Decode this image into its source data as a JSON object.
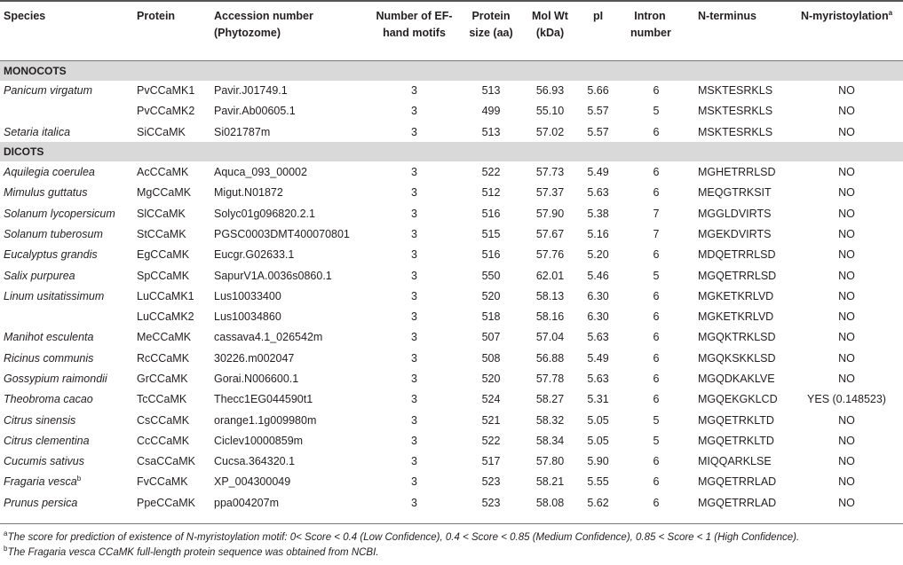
{
  "headers": {
    "species": "Species",
    "protein": "Protein",
    "accession": "Accession number (Phytozome)",
    "ef_hand": "Number of EF-hand motifs",
    "size": "Protein size (aa)",
    "molwt": "Mol Wt (kDa)",
    "pi": "pI",
    "intron": "Intron number",
    "nterm": "N-terminus",
    "nmyr": "N-myristoylation",
    "nmyr_sup": "a"
  },
  "sections": [
    {
      "label": "MONOCOTS",
      "rows": [
        {
          "species": "Panicum virgatum",
          "protein": "PvCCaMK1",
          "accession": "Pavir.J01749.1",
          "ef": "3",
          "size": "513",
          "mw": "56.93",
          "pi": "5.66",
          "intron": "6",
          "nterm": "MSKTESRKLS",
          "nmyr": "NO"
        },
        {
          "species": "",
          "protein": "PvCCaMK2",
          "accession": "Pavir.Ab00605.1",
          "ef": "3",
          "size": "499",
          "mw": "55.10",
          "pi": "5.57",
          "intron": "5",
          "nterm": "MSKTESRKLS",
          "nmyr": "NO"
        },
        {
          "species": "Setaria italica",
          "protein": "SiCCaMK",
          "accession": "Si021787m",
          "ef": "3",
          "size": "513",
          "mw": "57.02",
          "pi": "5.57",
          "intron": "6",
          "nterm": "MSKTESRKLS",
          "nmyr": "NO"
        }
      ]
    },
    {
      "label": "DICOTS",
      "rows": [
        {
          "species": "Aquilegia coerulea",
          "protein": "AcCCaMK",
          "accession": "Aquca_093_00002",
          "ef": "3",
          "size": "522",
          "mw": "57.73",
          "pi": "5.49",
          "intron": "6",
          "nterm": "MGHETRRLSD",
          "nmyr": "NO"
        },
        {
          "species": "Mimulus guttatus",
          "protein": "MgCCaMK",
          "accession": "Migut.N01872",
          "ef": "3",
          "size": "512",
          "mw": "57.37",
          "pi": "5.63",
          "intron": "6",
          "nterm": "MEQGTRKSIT",
          "nmyr": "NO"
        },
        {
          "species": "Solanum lycopersicum",
          "protein": "SlCCaMK",
          "accession": "Solyc01g096820.2.1",
          "ef": "3",
          "size": "516",
          "mw": "57.90",
          "pi": "5.38",
          "intron": "7",
          "nterm": "MGGLDVIRTS",
          "nmyr": "NO"
        },
        {
          "species": "Solanum tuberosum",
          "protein": "StCCaMK",
          "accession": "PGSC0003DMT400070801",
          "ef": "3",
          "size": "515",
          "mw": "57.67",
          "pi": "5.16",
          "intron": "7",
          "nterm": "MGEKDVIRTS",
          "nmyr": "NO"
        },
        {
          "species": "Eucalyptus grandis",
          "protein": "EgCCaMK",
          "accession": "Eucgr.G02633.1",
          "ef": "3",
          "size": "516",
          "mw": "57.76",
          "pi": "5.20",
          "intron": "6",
          "nterm": "MDQETRRLSD",
          "nmyr": "NO"
        },
        {
          "species": "Salix purpurea",
          "protein": "SpCCaMK",
          "accession": "SapurV1A.0036s0860.1",
          "ef": "3",
          "size": "550",
          "mw": "62.01",
          "pi": "5.46",
          "intron": "5",
          "nterm": "MGQETRRLSD",
          "nmyr": "NO"
        },
        {
          "species": "Linum usitatissimum",
          "protein": "LuCCaMK1",
          "accession": "Lus10033400",
          "ef": "3",
          "size": "520",
          "mw": "58.13",
          "pi": "6.30",
          "intron": "6",
          "nterm": "MGKETKRLVD",
          "nmyr": "NO"
        },
        {
          "species": "",
          "protein": "LuCCaMK2",
          "accession": "Lus10034860",
          "ef": "3",
          "size": "518",
          "mw": "58.16",
          "pi": "6.30",
          "intron": "6",
          "nterm": "MGKETKRLVD",
          "nmyr": "NO"
        },
        {
          "species": "Manihot esculenta",
          "protein": "MeCCaMK",
          "accession": "cassava4.1_026542m",
          "ef": "3",
          "size": "507",
          "mw": "57.04",
          "pi": "5.63",
          "intron": "6",
          "nterm": "MGQKTRKLSD",
          "nmyr": "NO"
        },
        {
          "species": "Ricinus communis",
          "protein": "RcCCaMK",
          "accession": "30226.m002047",
          "ef": "3",
          "size": "508",
          "mw": "56.88",
          "pi": "5.49",
          "intron": "6",
          "nterm": "MGQKSKKLSD",
          "nmyr": "NO"
        },
        {
          "species": "Gossypium raimondii",
          "protein": "GrCCaMK",
          "accession": "Gorai.N006600.1",
          "ef": "3",
          "size": "520",
          "mw": "57.78",
          "pi": "5.63",
          "intron": "6",
          "nterm": "MGQDKAKLVE",
          "nmyr": "NO"
        },
        {
          "species": "Theobroma cacao",
          "protein": "TcCCaMK",
          "accession": "Thecc1EG044590t1",
          "ef": "3",
          "size": "524",
          "mw": "58.27",
          "pi": "5.31",
          "intron": "6",
          "nterm": "MGQEKGKLCD",
          "nmyr": "YES (0.148523)"
        },
        {
          "species": "Citrus sinensis",
          "protein": "CsCCaMK",
          "accession": "orange1.1g009980m",
          "ef": "3",
          "size": "521",
          "mw": "58.32",
          "pi": "5.05",
          "intron": "5",
          "nterm": "MGQETRKLTD",
          "nmyr": "NO"
        },
        {
          "species": "Citrus clementina",
          "protein": "CcCCaMK",
          "accession": "Ciclev10000859m",
          "ef": "3",
          "size": "522",
          "mw": "58.34",
          "pi": "5.05",
          "intron": "5",
          "nterm": "MGQETRKLTD",
          "nmyr": "NO"
        },
        {
          "species": "Cucumis sativus",
          "protein": "CsaCCaMK",
          "accession": "Cucsa.364320.1",
          "ef": "3",
          "size": "517",
          "mw": "57.80",
          "pi": "5.90",
          "intron": "6",
          "nterm": "MIQQARKLSE",
          "nmyr": "NO"
        },
        {
          "species": "Fragaria vesca",
          "species_sup": "b",
          "protein": "FvCCaMK",
          "accession": "XP_004300049",
          "ef": "3",
          "size": "523",
          "mw": "58.21",
          "pi": "5.55",
          "intron": "6",
          "nterm": "MGQETRRLAD",
          "nmyr": "NO"
        },
        {
          "species": "Prunus persica",
          "protein": "PpeCCaMK",
          "accession": "ppa004207m",
          "ef": "3",
          "size": "523",
          "mw": "58.08",
          "pi": "5.62",
          "intron": "6",
          "nterm": "MGQETRRLAD",
          "nmyr": "NO"
        }
      ]
    }
  ],
  "footnotes": [
    {
      "mark": "a",
      "text": "The score for prediction of existence of N-myristoylation motif: 0< Score < 0.4 (Low Confidence), 0.4 < Score < 0.85 (Medium Confidence), 0.85 < Score < 1 (High Confidence)."
    },
    {
      "mark": "b",
      "text": "The Fragaria vesca CCaMK full-length protein sequence was obtained from NCBI."
    }
  ]
}
